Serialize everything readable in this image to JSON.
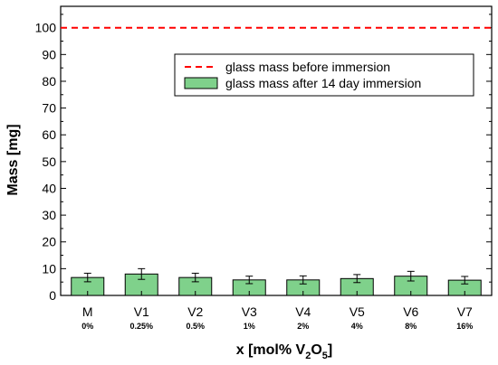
{
  "chart_data": {
    "type": "bar",
    "title": "",
    "xlabel_parts": {
      "main": "x [mol% V",
      "sub1": "2",
      "mid": "O",
      "sub2": "5",
      "end": "]"
    },
    "ylabel": "Mass [mg]",
    "ylim": [
      0,
      108
    ],
    "yticks": [
      0,
      10,
      20,
      30,
      40,
      50,
      60,
      70,
      80,
      90,
      100
    ],
    "categories": [
      "M",
      "V1",
      "V2",
      "V3",
      "V4",
      "V5",
      "V6",
      "V7"
    ],
    "category_sublabels": [
      "0%",
      "0.25%",
      "0.5%",
      "1%",
      "2%",
      "4%",
      "8%",
      "16%"
    ],
    "reference_line": {
      "name": "glass mass before immersion",
      "value": 100,
      "color": "#ff0000",
      "style": "dashed"
    },
    "series": [
      {
        "name": "glass mass after 14 day immersion",
        "values": [
          6.7,
          8.0,
          6.7,
          5.8,
          5.8,
          6.3,
          7.2,
          5.7
        ],
        "errors": [
          1.6,
          2.0,
          1.6,
          1.4,
          1.5,
          1.5,
          1.8,
          1.4
        ],
        "color": "#7fd18b"
      }
    ],
    "legend_position": "top-right",
    "grid": false,
    "minor_ticks": true
  }
}
